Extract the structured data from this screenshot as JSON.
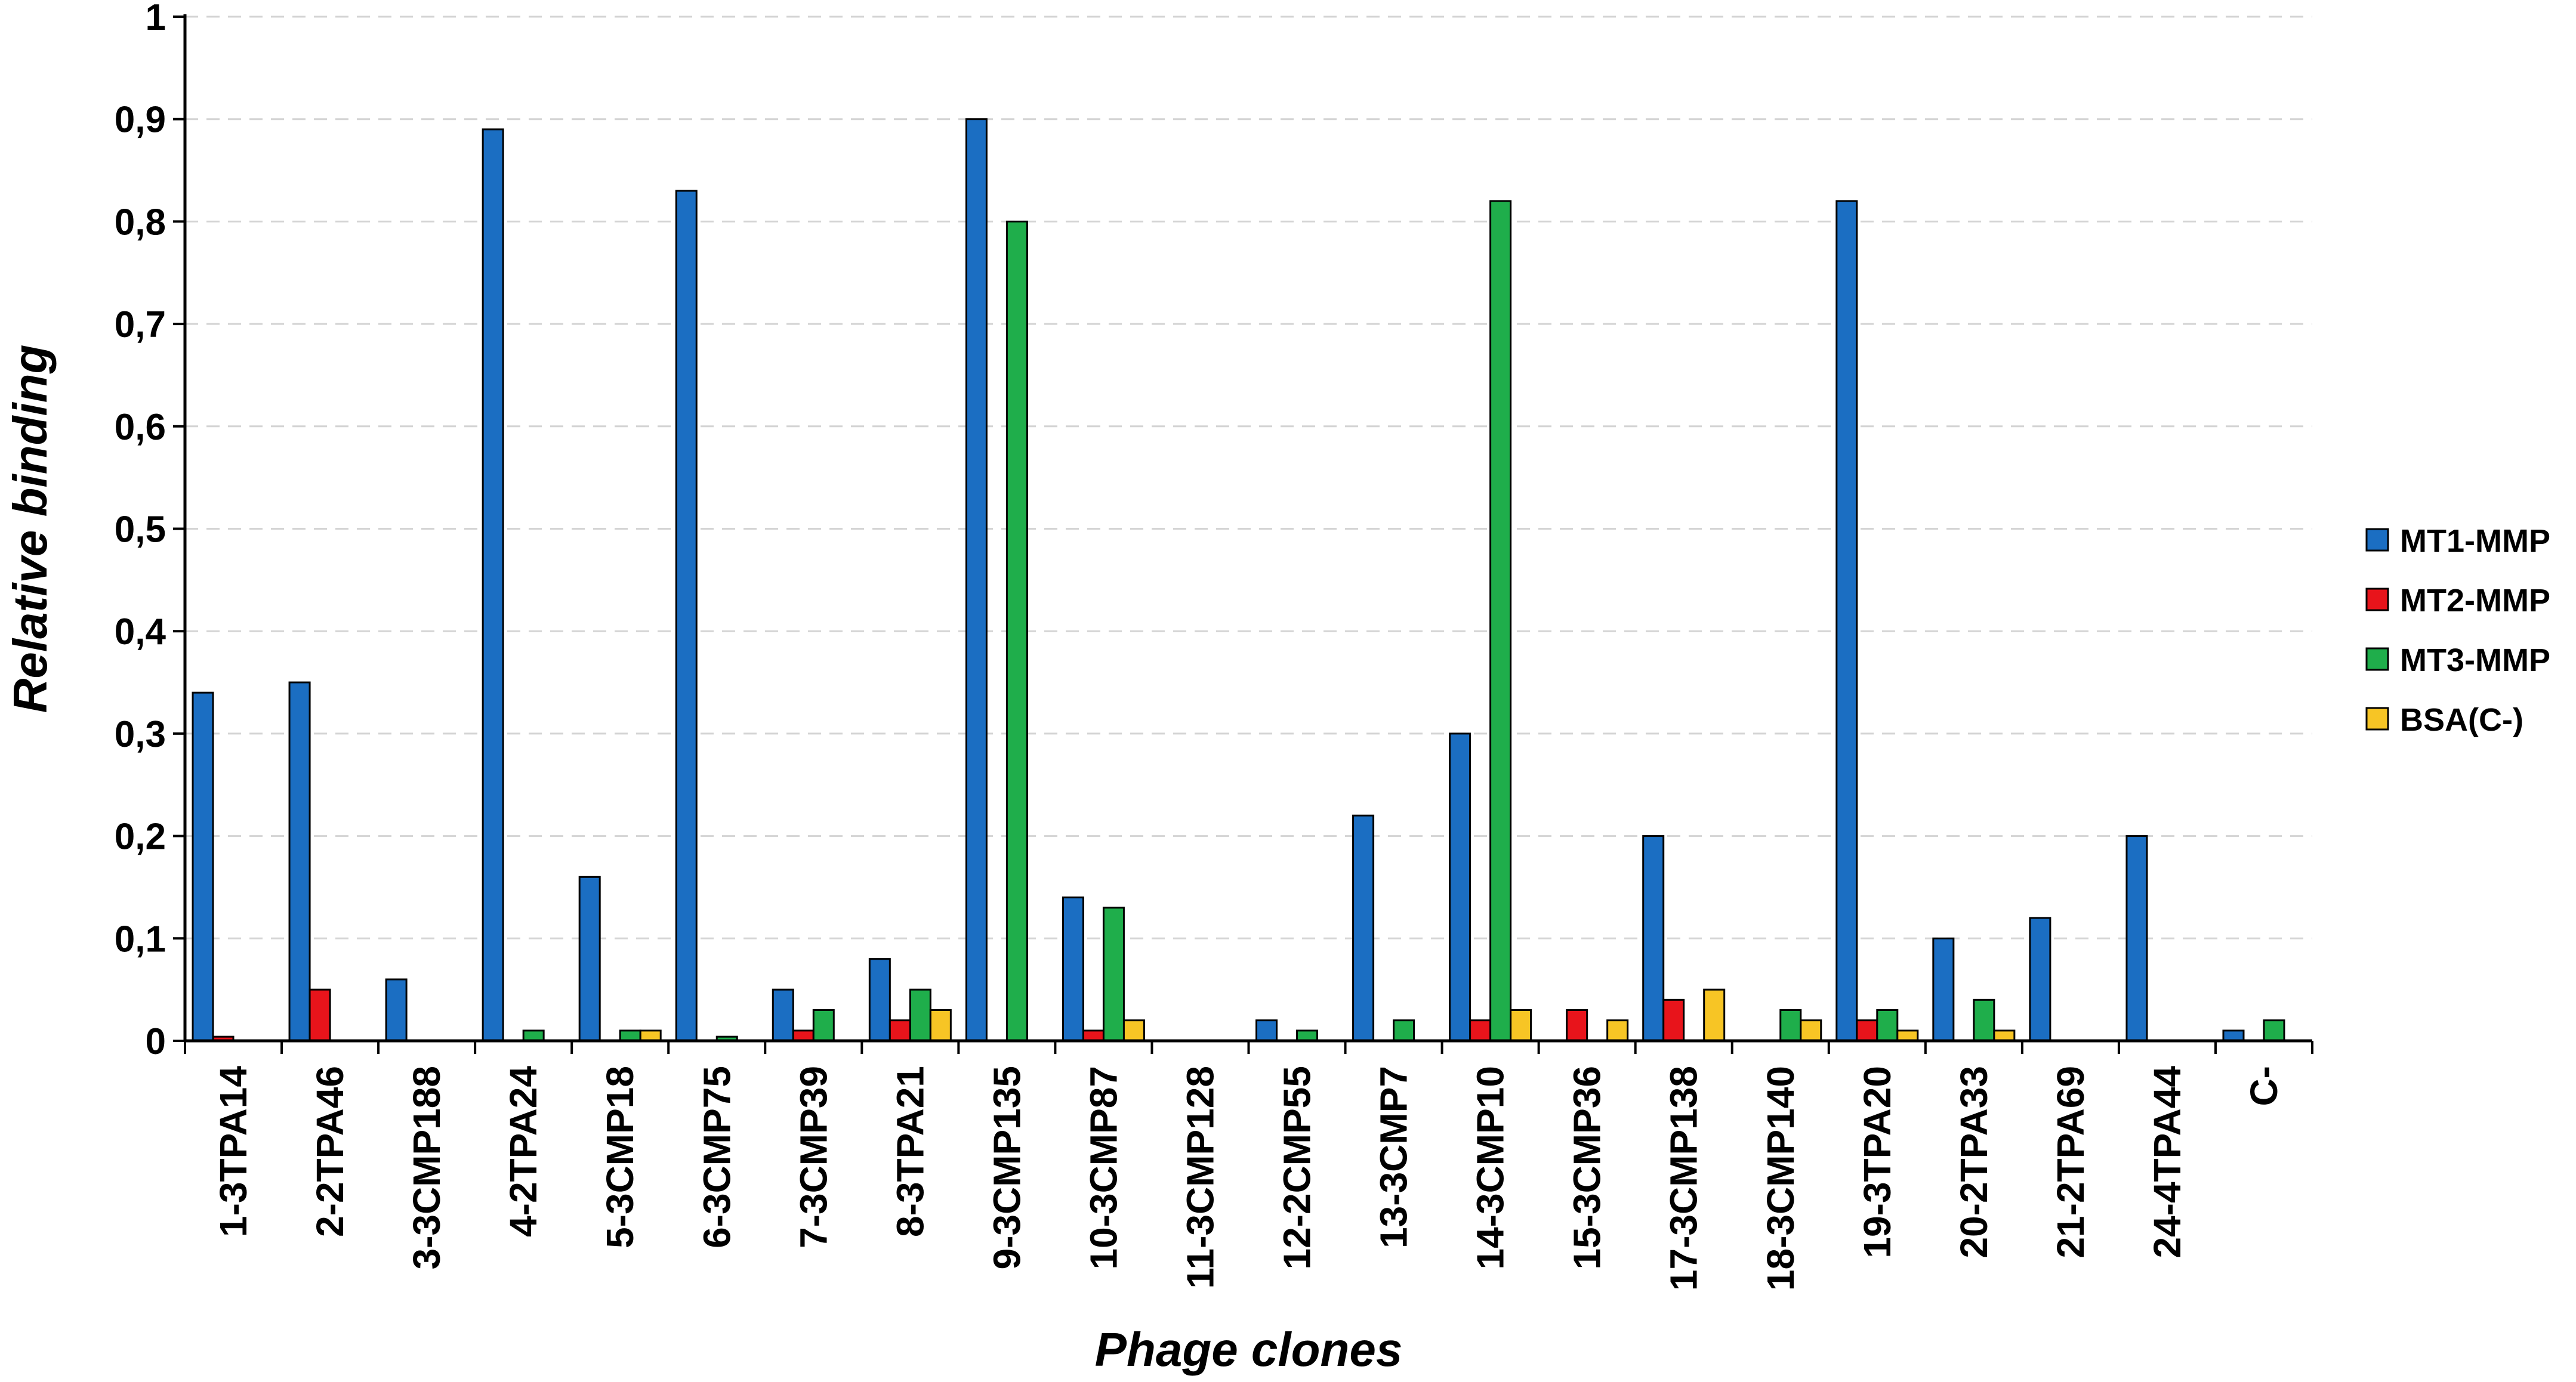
{
  "chart_data": {
    "type": "bar",
    "title": "",
    "xlabel": "Phage clones",
    "ylabel": "Relative binding",
    "ylim": [
      0,
      1
    ],
    "yticks": [
      "0",
      "0,1",
      "0,2",
      "0,3",
      "0,4",
      "0,5",
      "0,6",
      "0,7",
      "0,8",
      "0,9",
      "1"
    ],
    "grid": true,
    "legend_position": "right",
    "categories": [
      "1-3TPA14",
      "2-2TPA46",
      "3-3CMP188",
      "4-2TPA24",
      "5-3CMP18",
      "6-3CMP75",
      "7-3CMP39",
      "8-3TPA21",
      "9-3CMP135",
      "10-3CMP87",
      "11-3CMP128",
      "12-2CMP55",
      "13-3CMP7",
      "14-3CMP10",
      "15-3CMP36",
      "17-3CMP138",
      "18-3CMP140",
      "19-3TPA20",
      "20-2TPA33",
      "21-2TPA69",
      "24-4TPA44",
      "C-"
    ],
    "series": [
      {
        "name": "MT1-MMP",
        "color": "#1b6ec2",
        "values": [
          0.34,
          0.35,
          0.06,
          0.89,
          0.16,
          0.83,
          0.05,
          0.08,
          0.9,
          0.14,
          0,
          0.02,
          0.22,
          0.3,
          0,
          0.2,
          0,
          0.82,
          0.1,
          0.12,
          0.2,
          0.01
        ]
      },
      {
        "name": "MT2-MMP",
        "color": "#e8141b",
        "values": [
          0.004,
          0.05,
          0,
          0,
          0,
          0,
          0.01,
          0.02,
          0,
          0.01,
          0,
          0,
          0,
          0.02,
          0.03,
          0.04,
          0,
          0.02,
          0,
          0,
          0,
          0
        ]
      },
      {
        "name": "MT3-MMP",
        "color": "#1fae4b",
        "values": [
          0,
          0,
          0,
          0.01,
          0.01,
          0.004,
          0.03,
          0.05,
          0.8,
          0.13,
          0,
          0.01,
          0.02,
          0.82,
          0,
          0,
          0.03,
          0.03,
          0.04,
          0,
          0,
          0.02
        ]
      },
      {
        "name": "BSA(C-)",
        "color": "#f7c525",
        "values": [
          0,
          0,
          0,
          0,
          0.01,
          0,
          0,
          0.03,
          0,
          0.02,
          0,
          0,
          0,
          0.03,
          0.02,
          0.05,
          0.02,
          0.01,
          0.01,
          0,
          0,
          0
        ]
      }
    ]
  }
}
